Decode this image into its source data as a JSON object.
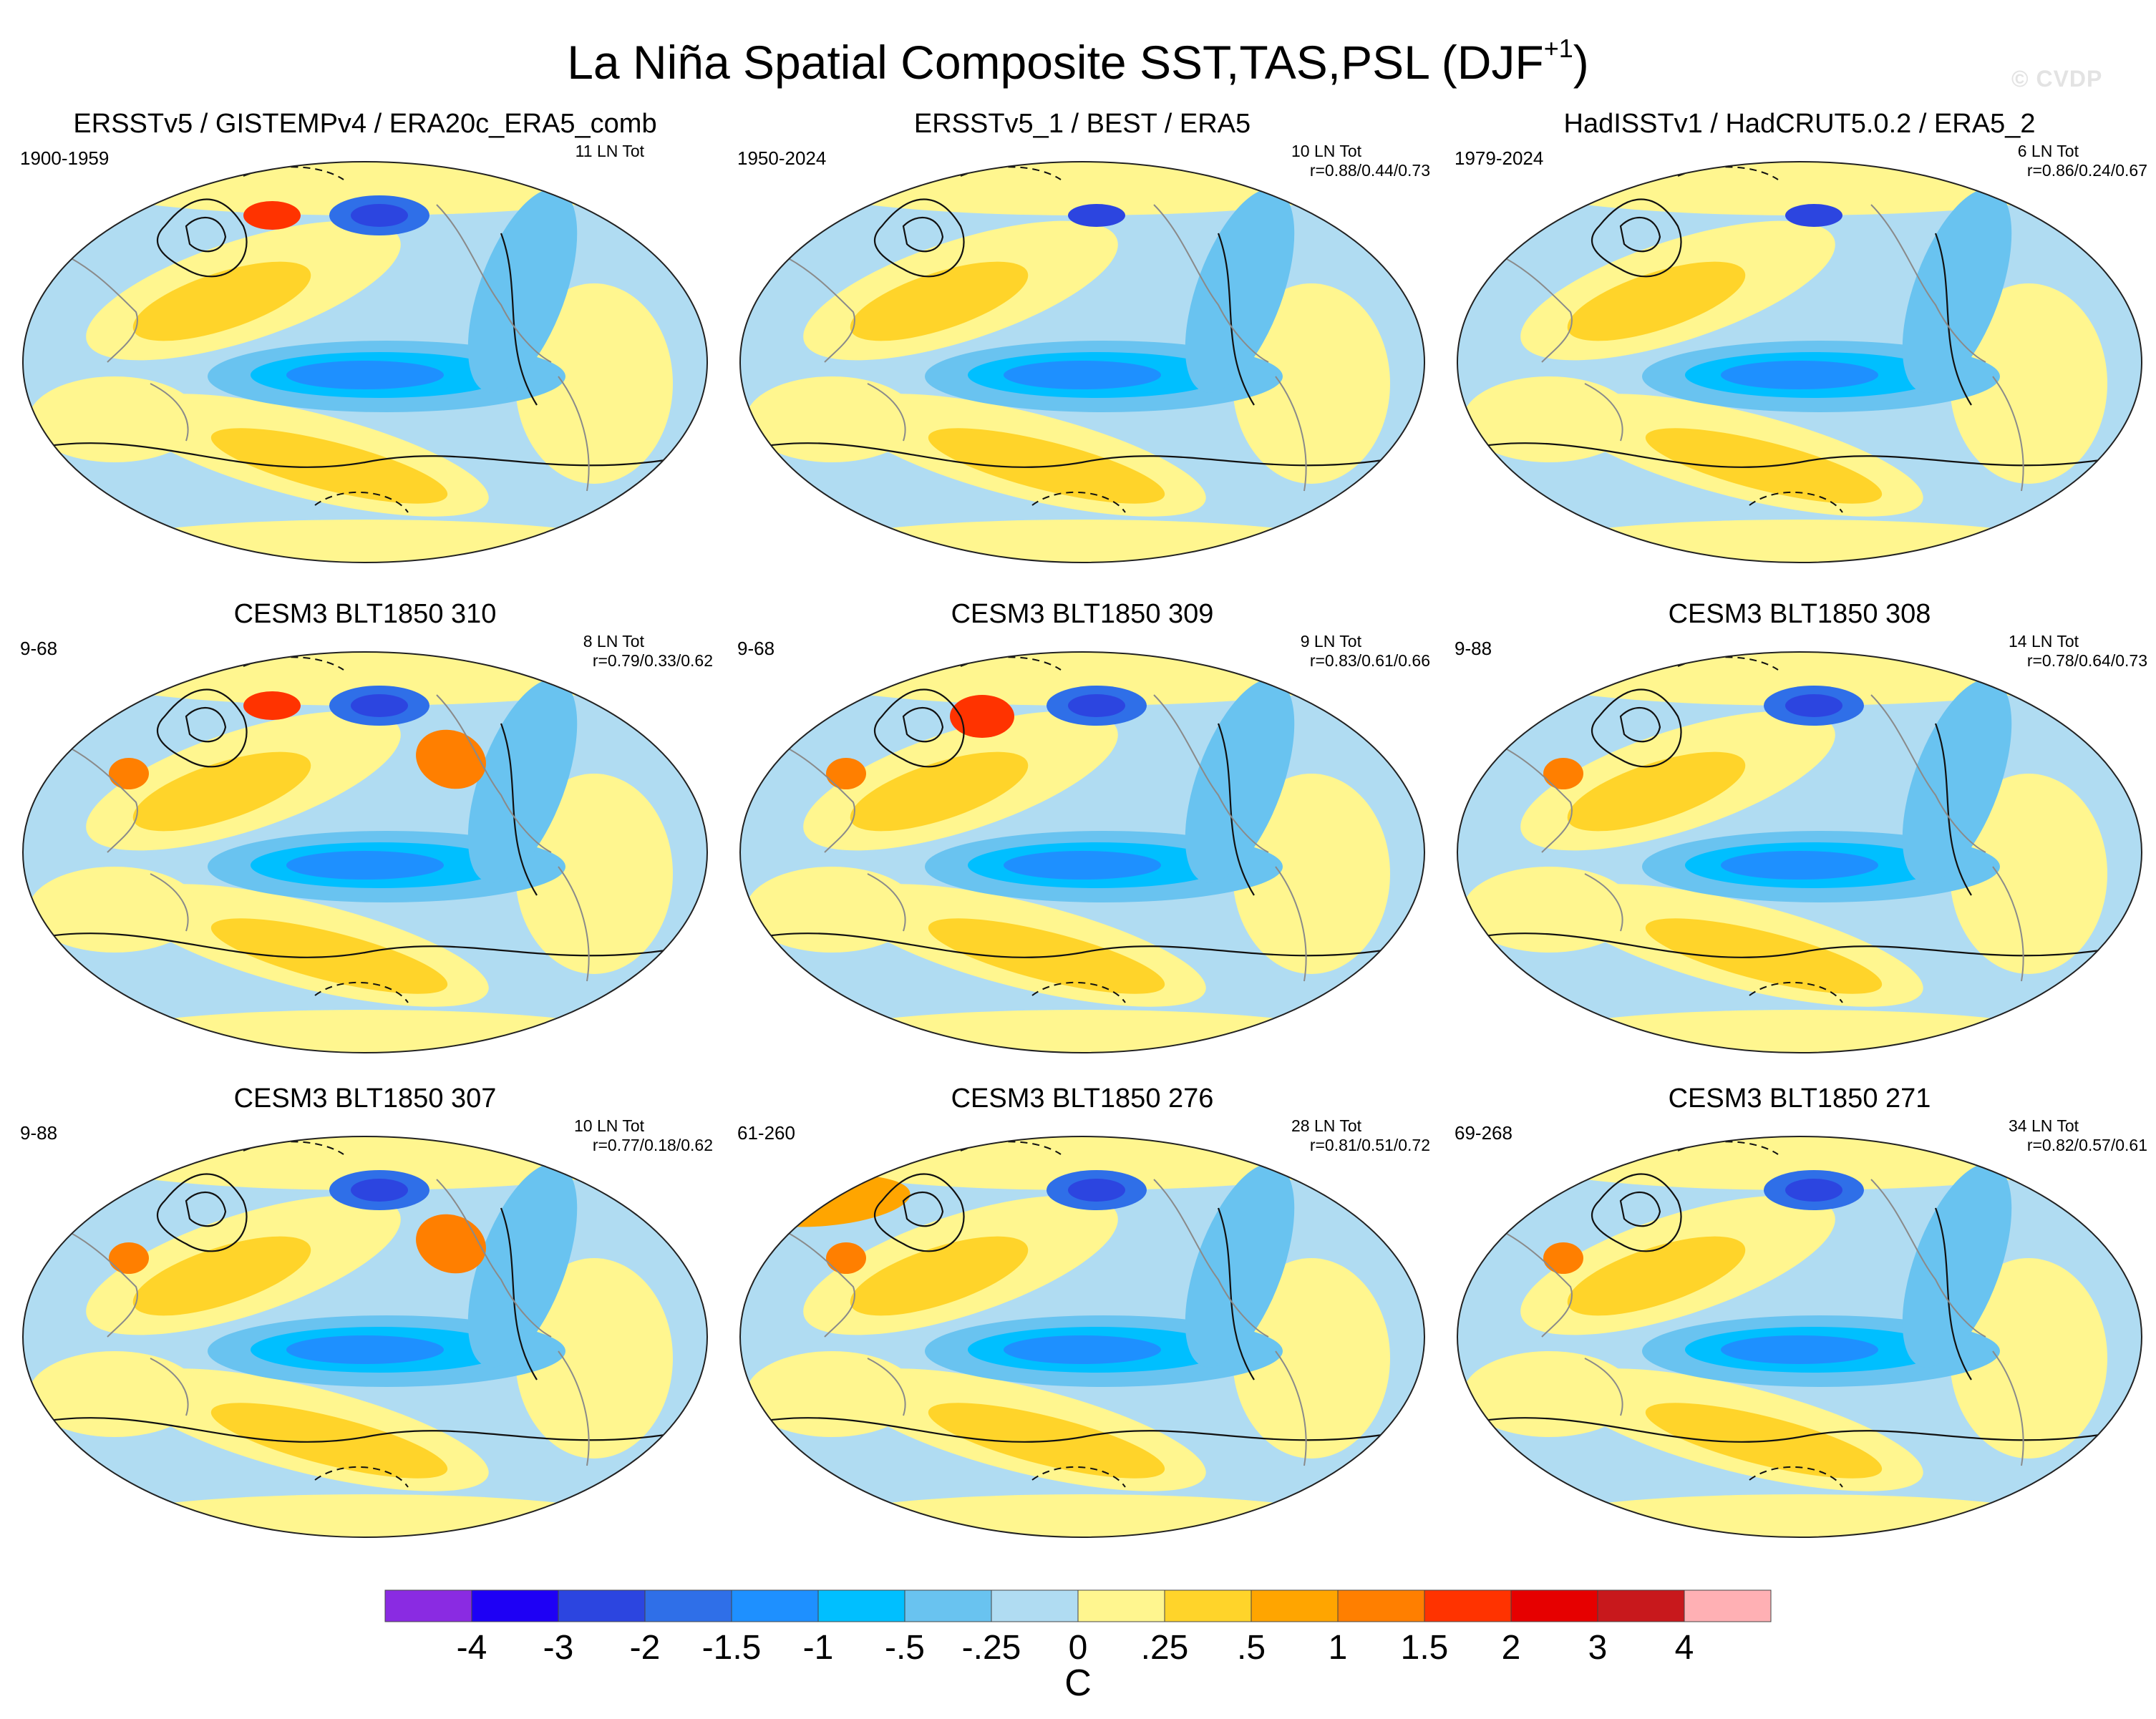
{
  "title_main": "La Niña Spatial Composite SST,TAS,PSL (DJF",
  "title_sup": "+1",
  "title_close": ")",
  "watermark": "© CVDP",
  "panels": [
    {
      "title": "ERSSTv5 / GISTEMPv4 / ERA20c_ERA5_comb",
      "period": "1900-1959",
      "count": "11 LN Tot",
      "corr": ""
    },
    {
      "title": "ERSSTv5_1 / BEST / ERA5",
      "period": "1950-2024",
      "count": "10 LN Tot",
      "corr": "r=0.88/0.44/0.73"
    },
    {
      "title": "HadISSTv1 / HadCRUT5.0.2 / ERA5_2",
      "period": "1979-2024",
      "count": "6 LN Tot",
      "corr": "r=0.86/0.24/0.67"
    },
    {
      "title": "CESM3 BLT1850 310",
      "period": "9-68",
      "count": "8 LN Tot",
      "corr": "r=0.79/0.33/0.62"
    },
    {
      "title": "CESM3 BLT1850 309",
      "period": "9-68",
      "count": "9 LN Tot",
      "corr": "r=0.83/0.61/0.66"
    },
    {
      "title": "CESM3 BLT1850 308",
      "period": "9-88",
      "count": "14 LN Tot",
      "corr": "r=0.78/0.64/0.73"
    },
    {
      "title": "CESM3 BLT1850 307",
      "period": "9-88",
      "count": "10 LN Tot",
      "corr": "r=0.77/0.18/0.62"
    },
    {
      "title": "CESM3 BLT1850 276",
      "period": "61-260",
      "count": "28 LN Tot",
      "corr": "r=0.81/0.51/0.72"
    },
    {
      "title": "CESM3 BLT1850 271",
      "period": "69-268",
      "count": "34 LN Tot",
      "corr": "r=0.82/0.57/0.61"
    }
  ],
  "chart_data": {
    "type": "heatmap",
    "projection": "Robinson (Pacific-centered)",
    "field": "Composite SST / TAS anomaly (shaded) with PSL anomaly (contours)",
    "colorbar": {
      "unit": "C",
      "levels": [
        "-4",
        "-3",
        "-2",
        "-1.5",
        "-1",
        "-.5",
        "-.25",
        "0",
        ".25",
        ".5",
        "1",
        "1.5",
        "2",
        "3",
        "4"
      ],
      "colors": [
        "#8a2be2",
        "#1e00f5",
        "#2c45e0",
        "#2f6fe8",
        "#1e90ff",
        "#00bfff",
        "#69c3f0",
        "#b0dcf2",
        "#fff68f",
        "#ffd42a",
        "#ffa500",
        "#ff7f00",
        "#ff3300",
        "#e60000",
        "#c8181c",
        "#ffb0b4"
      ]
    }
  }
}
